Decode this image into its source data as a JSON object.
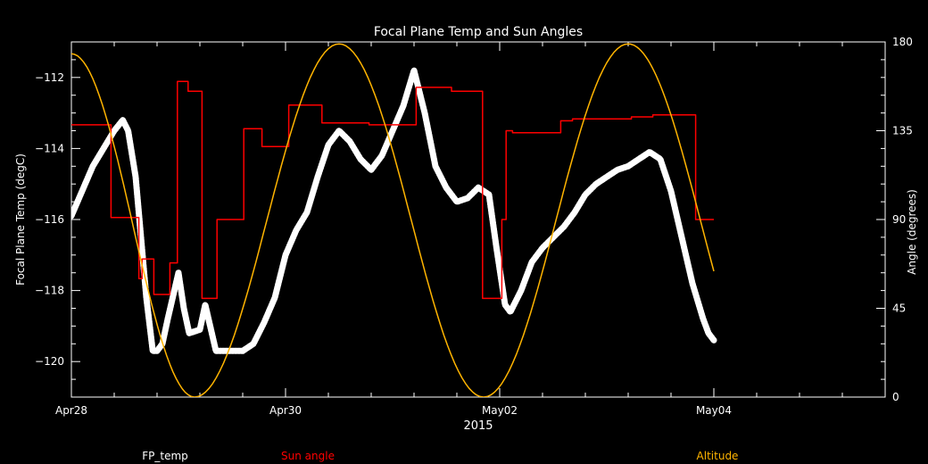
{
  "chart_data": {
    "type": "line",
    "title": "Focal Plane Temp and Sun Angles",
    "xlabel": "2015",
    "ylabel_left": "Focal Plane Temp (degC)",
    "ylabel_right": "Angle (degrees)",
    "x_unit": "days since Apr28 2015",
    "xlim": [
      0,
      7.6
    ],
    "ylim_left": [
      -121,
      -111
    ],
    "ylim_right": [
      0,
      180
    ],
    "x_ticks": [
      {
        "value": 0,
        "label": "Apr28"
      },
      {
        "value": 2,
        "label": "Apr30"
      },
      {
        "value": 4,
        "label": "May02"
      },
      {
        "value": 6,
        "label": "May04"
      }
    ],
    "y_ticks_left": [
      {
        "value": -112,
        "label": "−112"
      },
      {
        "value": -114,
        "label": "−114"
      },
      {
        "value": -116,
        "label": "−116"
      },
      {
        "value": -118,
        "label": "−118"
      },
      {
        "value": -120,
        "label": "−120"
      }
    ],
    "y_ticks_right": [
      {
        "value": 0,
        "label": "0"
      },
      {
        "value": 45,
        "label": "45"
      },
      {
        "value": 90,
        "label": "90"
      },
      {
        "value": 135,
        "label": "135"
      },
      {
        "value": 180,
        "label": "180"
      }
    ],
    "series": [
      {
        "name": "FP_temp",
        "axis": "left",
        "color": "#ffffff",
        "x": [
          0.0,
          0.2,
          0.4,
          0.48,
          0.53,
          0.6,
          0.65,
          0.7,
          0.76,
          0.8,
          0.85,
          0.9,
          1.0,
          1.05,
          1.1,
          1.2,
          1.25,
          1.35,
          1.42,
          1.5,
          1.6,
          1.7,
          1.8,
          1.9,
          2.0,
          2.1,
          2.2,
          2.3,
          2.4,
          2.5,
          2.6,
          2.7,
          2.8,
          2.9,
          3.0,
          3.1,
          3.2,
          3.3,
          3.4,
          3.5,
          3.6,
          3.7,
          3.8,
          3.9,
          3.97,
          4.05,
          4.1,
          4.2,
          4.3,
          4.4,
          4.5,
          4.6,
          4.7,
          4.8,
          4.9,
          5.0,
          5.1,
          5.2,
          5.3,
          5.4,
          5.5,
          5.6,
          5.7,
          5.8,
          5.9,
          5.95,
          6.0
        ],
        "values": [
          -115.9,
          -114.5,
          -113.5,
          -113.2,
          -113.5,
          -114.8,
          -116.5,
          -118.2,
          -119.7,
          -119.7,
          -119.5,
          -118.8,
          -117.5,
          -118.5,
          -119.2,
          -119.1,
          -118.4,
          -119.7,
          -119.7,
          -119.7,
          -119.7,
          -119.5,
          -118.9,
          -118.2,
          -117.0,
          -116.3,
          -115.8,
          -114.8,
          -113.9,
          -113.5,
          -113.8,
          -114.3,
          -114.6,
          -114.2,
          -113.5,
          -112.8,
          -111.8,
          -113.0,
          -114.5,
          -115.1,
          -115.5,
          -115.4,
          -115.1,
          -115.3,
          -116.8,
          -118.4,
          -118.6,
          -118.0,
          -117.2,
          -116.8,
          -116.5,
          -116.2,
          -115.8,
          -115.3,
          -115.0,
          -114.8,
          -114.6,
          -114.5,
          -114.3,
          -114.1,
          -114.3,
          -115.2,
          -116.5,
          -117.8,
          -118.8,
          -119.2,
          -119.4
        ]
      },
      {
        "name": "Sun angle",
        "axis": "right",
        "color": "#ff0000",
        "x": [
          0.0,
          0.37,
          0.37,
          0.63,
          0.63,
          0.66,
          0.66,
          0.77,
          0.77,
          0.92,
          0.92,
          0.99,
          0.99,
          1.09,
          1.09,
          1.22,
          1.22,
          1.36,
          1.36,
          1.61,
          1.61,
          1.78,
          1.78,
          2.03,
          2.03,
          2.34,
          2.34,
          2.78,
          2.78,
          3.22,
          3.22,
          3.55,
          3.55,
          3.84,
          3.84,
          4.02,
          4.02,
          4.06,
          4.06,
          4.12,
          4.12,
          4.57,
          4.57,
          4.68,
          4.68,
          5.23,
          5.23,
          5.33,
          5.33,
          5.43,
          5.43,
          5.83,
          5.83,
          6.0
        ],
        "values": [
          138,
          138,
          91,
          91,
          60,
          60,
          70,
          70,
          52,
          52,
          68,
          68,
          160,
          160,
          155,
          155,
          50,
          50,
          90,
          90,
          136,
          136,
          127,
          127,
          148,
          148,
          139,
          139,
          138,
          138,
          157,
          157,
          155,
          155,
          50,
          50,
          90,
          90,
          135,
          135,
          134,
          134,
          140,
          140,
          141,
          141,
          142,
          142,
          142,
          142,
          143,
          143,
          90,
          90
        ]
      },
      {
        "name": "Altitude",
        "axis": "right",
        "color": "#ffb400",
        "function": "sine",
        "x": [
          0.0,
          1.15,
          2.5,
          3.85,
          5.2,
          6.0
        ],
        "values": [
          174,
          0,
          179,
          0,
          179,
          97
        ]
      }
    ],
    "legend": {
      "placement": "bottom",
      "items": [
        "FP_temp",
        "Sun angle",
        "Altitude"
      ]
    }
  }
}
